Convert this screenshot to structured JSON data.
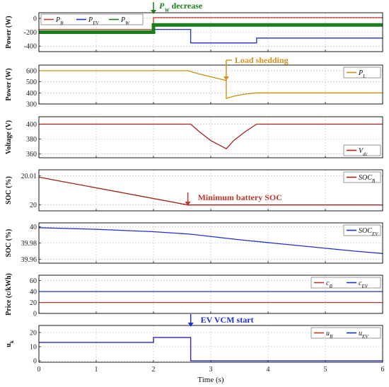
{
  "chart_data": [
    {
      "type": "line",
      "ylabel": "Power (W)",
      "ylim": [
        -480,
        80
      ],
      "yticks": [
        -400,
        -200,
        0
      ],
      "xlim": [
        0,
        6
      ],
      "grid": true,
      "legend": "top-left",
      "annotation": {
        "text": "P_W decrease",
        "x": 2,
        "color": "#1a7f1a"
      },
      "series": [
        {
          "name": "P_B",
          "color": "#c0392b",
          "x": [
            0,
            2,
            2,
            6
          ],
          "y": [
            -160,
            -160,
            10,
            10
          ]
        },
        {
          "name": "P_EV",
          "color": "#1f2fd6",
          "x": [
            0,
            2,
            2,
            2.65,
            2.65,
            3.8,
            3.8,
            6
          ],
          "y": [
            -190,
            -190,
            -160,
            -160,
            -355,
            -355,
            -285,
            -285
          ]
        },
        {
          "name": "P_W",
          "color": "#1a7f1a",
          "x": [
            0,
            2,
            2,
            6
          ],
          "y": [
            -200,
            -200,
            -95,
            -95
          ]
        }
      ]
    },
    {
      "type": "line",
      "ylabel": "Power (W)",
      "ylim": [
        300,
        650
      ],
      "yticks": [
        300,
        400,
        500,
        600
      ],
      "xlim": [
        0,
        6
      ],
      "grid": true,
      "legend": "top-right",
      "annotation": {
        "text": "Load shedding",
        "x": 3.27,
        "color": "#d4911f"
      },
      "series": [
        {
          "name": "P_L",
          "color": "#c9900e",
          "x": [
            0,
            2.6,
            2.8,
            3.0,
            3.2,
            3.27,
            3.27,
            3.4,
            3.6,
            3.8,
            6
          ],
          "y": [
            600,
            600,
            570,
            545,
            520,
            510,
            350,
            370,
            390,
            400,
            400
          ]
        }
      ]
    },
    {
      "type": "line",
      "ylabel": "Voltage (V)",
      "ylim": [
        355,
        410
      ],
      "yticks": [
        360,
        380,
        400
      ],
      "xlim": [
        0,
        6
      ],
      "grid": true,
      "legend": "bottom-right",
      "series": [
        {
          "name": "V_dc",
          "color": "#a6201a",
          "x": [
            0,
            2.65,
            2.8,
            3.0,
            3.2,
            3.27,
            3.4,
            3.6,
            3.8,
            6
          ],
          "y": [
            400,
            400,
            390,
            378,
            370,
            367,
            378,
            390,
            400,
            400
          ]
        }
      ]
    },
    {
      "type": "line",
      "ylabel": "SOC (%)",
      "ylim": [
        19.998,
        20.012
      ],
      "yticks": [
        20,
        20.01
      ],
      "xlim": [
        0,
        6
      ],
      "grid": true,
      "legend": "top-right",
      "annotation": {
        "text": "Minimum battery SOC",
        "x": 2.6,
        "color": "#c0392b"
      },
      "series": [
        {
          "name": "SOC_B",
          "color": "#a6201a",
          "x": [
            0,
            2.6,
            6
          ],
          "y": [
            20.0095,
            20.0,
            20.0
          ]
        }
      ]
    },
    {
      "type": "line",
      "ylabel": "SOC (%)",
      "ylim": [
        39.955,
        40.005
      ],
      "yticks": [
        39.96,
        39.98,
        40
      ],
      "xlim": [
        0,
        6
      ],
      "grid": true,
      "legend": "top-right",
      "series": [
        {
          "name": "SOC_EV",
          "color": "#1f2fd6",
          "x": [
            0,
            1,
            2,
            2.65,
            3.5,
            4.5,
            5.5,
            6
          ],
          "y": [
            39.999,
            39.997,
            39.994,
            39.991,
            39.984,
            39.977,
            39.97,
            39.967
          ]
        }
      ]
    },
    {
      "type": "line",
      "ylabel": "Price (c/kWh)",
      "ylim": [
        0,
        70
      ],
      "yticks": [
        0,
        20,
        40,
        60
      ],
      "xlim": [
        0,
        6
      ],
      "grid": true,
      "legend": "top-right",
      "series": [
        {
          "name": "c_B",
          "color": "#c0392b",
          "x": [
            0,
            6
          ],
          "y": [
            20,
            20
          ]
        },
        {
          "name": "c_EV",
          "color": "#1f2fd6",
          "x": [
            0,
            6
          ],
          "y": [
            40,
            40
          ]
        }
      ]
    },
    {
      "type": "line",
      "ylabel": "u_k",
      "ylim": [
        -1,
        25
      ],
      "yticks": [
        0,
        10,
        20
      ],
      "xlim": [
        0,
        6
      ],
      "xticks": [
        0,
        1,
        2,
        3,
        4,
        5,
        6
      ],
      "xlabel": "Time (s)",
      "grid": true,
      "legend": "top-right",
      "annotation": {
        "text": "EV VCM start",
        "x": 2.65,
        "color": "#1f2fd6"
      },
      "series": [
        {
          "name": "u_B",
          "color": "#c0392b",
          "x": [
            0,
            2,
            2,
            2.65,
            2.65,
            6
          ],
          "y": [
            13,
            13,
            16.5,
            16.5,
            0,
            0
          ]
        },
        {
          "name": "u_EV",
          "color": "#1f2fd6",
          "x": [
            0,
            2,
            2,
            2.65,
            2.65,
            6
          ],
          "y": [
            13,
            13,
            16.5,
            16.5,
            0,
            0
          ]
        }
      ]
    }
  ]
}
